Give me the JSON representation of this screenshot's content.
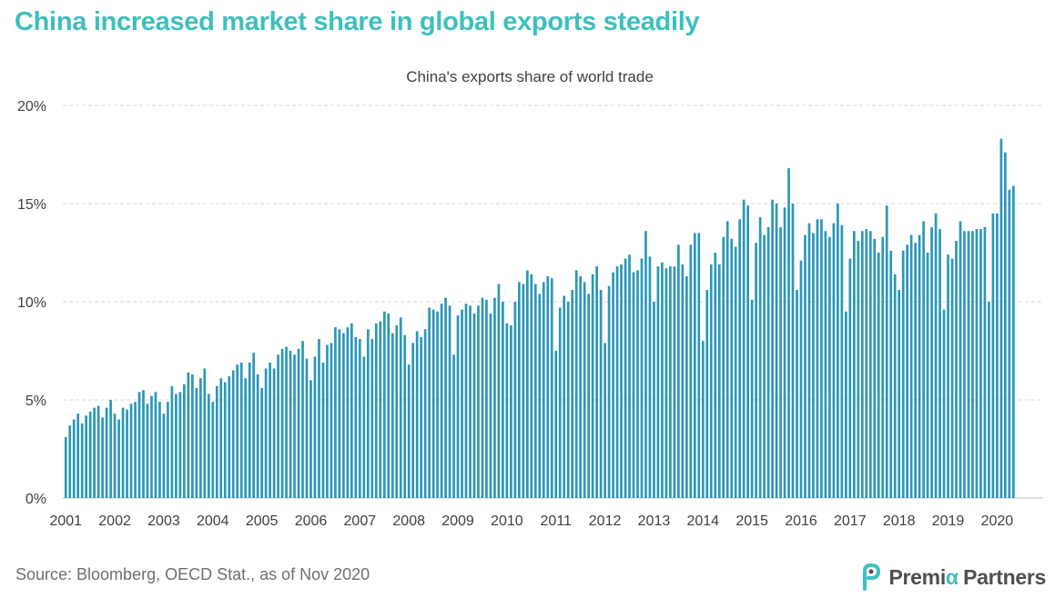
{
  "headline": "China increased market share in global exports steadily",
  "source": "Source: Bloomberg, OECD Stat., as of Nov 2020",
  "logo": {
    "word1": "Premi",
    "alpha": "α",
    "word2": "Partners",
    "icon": "brand-p-icon"
  },
  "colors": {
    "headline": "#3dbfbf",
    "bar": "#2b97b7",
    "grid": "#d9d9d9",
    "axis_text": "#404040",
    "source_text": "#6f6f6f",
    "logo_accent": "#3dbfbf"
  },
  "chart_data": {
    "type": "bar",
    "title": "China's exports share of world trade",
    "xlabel": "",
    "ylabel": "",
    "ylim": [
      0,
      20
    ],
    "y_ticks": [
      0,
      5,
      10,
      15,
      20
    ],
    "y_tick_labels": [
      "0%",
      "5%",
      "10%",
      "15%",
      "20%"
    ],
    "x_tick_labels": [
      "2001",
      "2002",
      "2003",
      "2004",
      "2005",
      "2006",
      "2007",
      "2008",
      "2009",
      "2010",
      "2011",
      "2012",
      "2013",
      "2014",
      "2015",
      "2016",
      "2017",
      "2018",
      "2019",
      "2020"
    ],
    "frequency": "monthly",
    "start": "2001-01",
    "grid": true,
    "legend": "none",
    "series": [
      {
        "values": [
          3.1,
          3.7,
          4.0,
          4.3,
          3.8,
          4.2,
          4.4,
          4.6,
          4.7,
          4.1,
          4.6,
          5.0,
          4.3,
          4.0,
          4.6,
          4.5,
          4.8,
          4.9,
          5.4,
          5.5,
          4.8,
          5.2,
          5.4,
          4.9,
          4.3,
          4.9,
          5.7,
          5.3,
          5.4,
          5.8,
          6.4,
          6.3,
          5.6,
          6.1,
          6.6,
          5.3,
          4.9,
          5.7,
          6.1,
          5.9,
          6.2,
          6.5,
          6.8,
          6.9,
          6.1,
          6.9,
          7.4,
          6.3,
          5.6,
          6.6,
          6.9,
          6.6,
          7.3,
          7.6,
          7.7,
          7.5,
          7.3,
          7.6,
          8.0,
          7.1,
          6.0,
          7.2,
          8.1,
          6.9,
          7.8,
          7.9,
          8.7,
          8.6,
          8.4,
          8.7,
          8.9,
          8.2,
          8.1,
          7.2,
          8.6,
          8.1,
          8.9,
          9.0,
          9.5,
          9.4,
          8.4,
          8.8,
          9.2,
          8.3,
          6.8,
          7.9,
          8.5,
          8.2,
          8.6,
          9.7,
          9.6,
          9.5,
          9.9,
          10.2,
          9.8,
          7.3,
          9.3,
          9.6,
          9.9,
          9.8,
          9.4,
          9.8,
          10.2,
          10.1,
          9.4,
          10.2,
          10.9,
          10.0,
          8.9,
          8.8,
          10.0,
          11.0,
          10.9,
          11.6,
          11.4,
          10.9,
          10.4,
          11.0,
          11.3,
          11.2,
          7.5,
          9.7,
          10.3,
          10.0,
          10.6,
          11.6,
          11.3,
          11.0,
          10.4,
          11.4,
          11.8,
          10.6,
          7.9,
          10.8,
          11.5,
          11.8,
          11.9,
          12.2,
          12.4,
          11.5,
          11.6,
          12.2,
          13.6,
          12.3,
          10.0,
          11.8,
          12.0,
          11.7,
          11.8,
          11.8,
          12.9,
          11.9,
          11.3,
          12.9,
          13.5,
          13.5,
          8.0,
          10.6,
          11.9,
          12.5,
          11.9,
          13.3,
          14.1,
          13.2,
          12.8,
          14.2,
          15.2,
          14.9,
          10.1,
          13.0,
          14.3,
          13.4,
          13.8,
          15.2,
          15.0,
          13.8,
          14.8,
          16.8,
          15.0,
          10.6,
          12.1,
          13.4,
          14.0,
          13.5,
          14.2,
          14.2,
          13.6,
          13.3,
          14.0,
          15.0,
          13.9,
          9.5,
          12.2,
          13.6,
          13.1,
          13.6,
          13.7,
          13.6,
          13.2,
          12.5,
          13.3,
          14.9,
          12.6,
          11.4,
          10.6,
          12.6,
          12.9,
          13.4,
          13.0,
          13.4,
          14.1,
          12.5,
          13.8,
          14.5,
          13.7,
          9.6,
          12.4,
          12.2,
          13.1,
          14.1,
          13.6,
          13.6,
          13.6,
          13.7,
          13.7,
          13.8,
          10.0,
          14.5,
          14.5,
          18.3,
          17.6,
          15.7,
          15.9
        ]
      }
    ]
  }
}
